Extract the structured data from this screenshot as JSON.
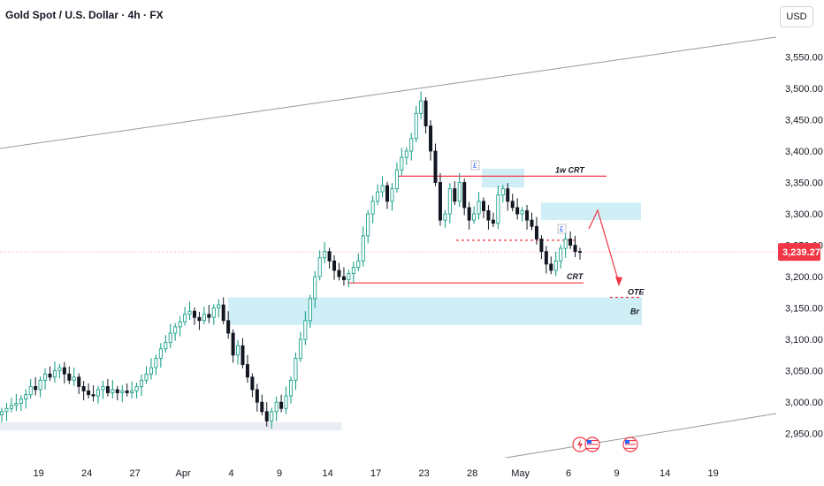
{
  "header": {
    "title": "Gold Spot / U.S. Dollar · 4h · FX",
    "currency": "USD"
  },
  "colors": {
    "up": "#089981",
    "down": "#131722",
    "zone": "#bfe8f2",
    "level": "#f23645",
    "trendline": "#9598a1",
    "price_label_bg": "#f23645"
  },
  "icons": [
    "lightning-event-icon",
    "us-flag-event-icon",
    "us-flag-event-icon"
  ],
  "chart_data": {
    "type": "candlestick",
    "current_price": 3239.27,
    "current_price_label": "3,239.27",
    "ylim": [
      2920,
      3590
    ],
    "y_ticks": [
      {
        "value": 3550,
        "label": "3,550.00"
      },
      {
        "value": 3500,
        "label": "3,500.00"
      },
      {
        "value": 3450,
        "label": "3,450.00"
      },
      {
        "value": 3400,
        "label": "3,400.00"
      },
      {
        "value": 3350,
        "label": "3,350.00"
      },
      {
        "value": 3300,
        "label": "3,300.00"
      },
      {
        "value": 3250,
        "label": "3,250.00"
      },
      {
        "value": 3200,
        "label": "3,200.00"
      },
      {
        "value": 3150,
        "label": "3,150.00"
      },
      {
        "value": 3100,
        "label": "3,100.00"
      },
      {
        "value": 3050,
        "label": "3,050.00"
      },
      {
        "value": 3000,
        "label": "3,000.00"
      },
      {
        "value": 2950,
        "label": "2,950.00"
      }
    ],
    "x_ticks": [
      {
        "index": 8,
        "label": "19"
      },
      {
        "index": 18,
        "label": "24"
      },
      {
        "index": 28,
        "label": "27"
      },
      {
        "index": 38,
        "label": "Apr"
      },
      {
        "index": 48,
        "label": "4"
      },
      {
        "index": 58,
        "label": "9"
      },
      {
        "index": 68,
        "label": "14"
      },
      {
        "index": 78,
        "label": "17"
      },
      {
        "index": 88,
        "label": "23"
      },
      {
        "index": 98,
        "label": "28"
      },
      {
        "index": 108,
        "label": "May"
      },
      {
        "index": 118,
        "label": "6"
      },
      {
        "index": 128,
        "label": "9"
      },
      {
        "index": 138,
        "label": "14"
      },
      {
        "index": 148,
        "label": "19"
      }
    ],
    "closes": [
      2985,
      2990,
      2995,
      2998,
      3005,
      3012,
      3025,
      3020,
      3035,
      3045,
      3040,
      3050,
      3055,
      3045,
      3035,
      3040,
      3025,
      3018,
      3012,
      3010,
      3020,
      3025,
      3015,
      3020,
      3015,
      3018,
      3015,
      3018,
      3025,
      3035,
      3045,
      3055,
      3070,
      3085,
      3095,
      3110,
      3120,
      3128,
      3140,
      3145,
      3135,
      3130,
      3140,
      3135,
      3150,
      3155,
      3130,
      3110,
      3075,
      3090,
      3060,
      3040,
      3020,
      3000,
      2985,
      2970,
      2985,
      3000,
      2990,
      3010,
      3035,
      3070,
      3100,
      3130,
      3165,
      3200,
      3230,
      3240,
      3225,
      3210,
      3200,
      3195,
      3205,
      3215,
      3225,
      3265,
      3300,
      3320,
      3335,
      3345,
      3320,
      3340,
      3370,
      3390,
      3400,
      3420,
      3460,
      3480,
      3440,
      3400,
      3350,
      3290,
      3300,
      3340,
      3320,
      3350,
      3310,
      3290,
      3300,
      3320,
      3305,
      3290,
      3285,
      3330,
      3340,
      3320,
      3310,
      3300,
      3305,
      3290,
      3280,
      3260,
      3240,
      3220,
      3210,
      3225,
      3245,
      3260,
      3250,
      3240,
      3239.27
    ],
    "start_open": 2980,
    "annotations": [
      {
        "text": "1w CRT",
        "price": 3360
      },
      {
        "text": "CRT",
        "price": 3190
      },
      {
        "text": "OTE",
        "price": 3167
      },
      {
        "text": "Br",
        "price": 3140
      }
    ],
    "zones": [
      {
        "name": "lower-demand-zone",
        "top": 3167,
        "bottom": 3123
      },
      {
        "name": "bottom-support-zone",
        "top": 2968,
        "bottom": 2955
      },
      {
        "name": "upper-fvg-zone-1",
        "top": 3372,
        "bottom": 3342
      },
      {
        "name": "upper-fvg-zone-2",
        "top": 3318,
        "bottom": 3290
      }
    ],
    "levels": [
      {
        "name": "1w-crt-high-line",
        "price": 3360
      },
      {
        "name": "crt-low-line",
        "price": 3190
      },
      {
        "name": "dashed-mid-line",
        "price": 3258
      },
      {
        "name": "ote-dashed-line",
        "price": 3167
      }
    ],
    "labels_marks": [
      "£",
      "£"
    ]
  }
}
